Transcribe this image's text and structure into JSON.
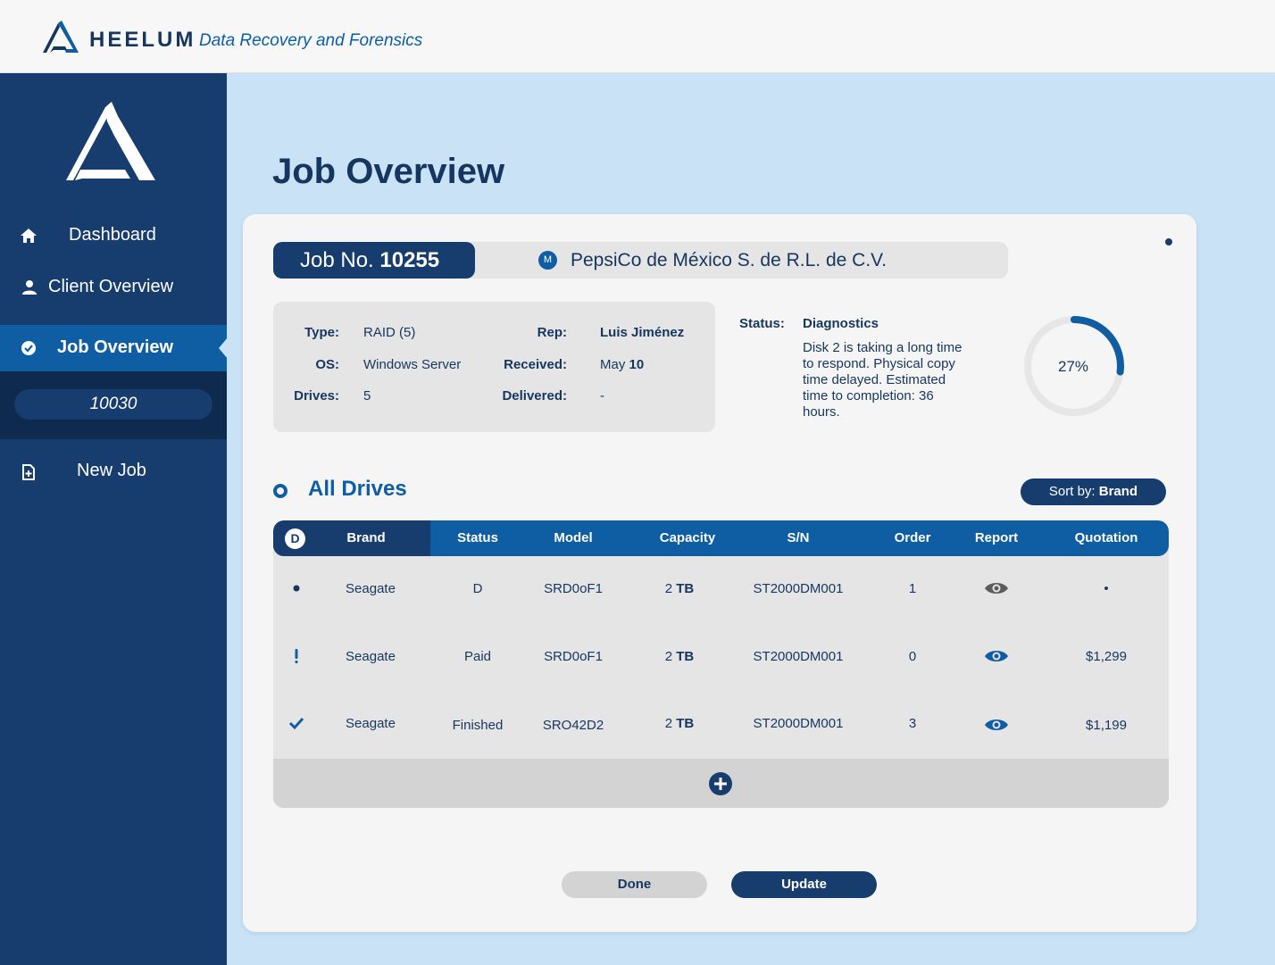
{
  "brand": {
    "name": "HEELUM",
    "tagline": "Data Recovery and Forensics"
  },
  "sidebar": {
    "items": [
      {
        "label": "Dashboard",
        "icon": "home-icon"
      },
      {
        "label": "Client Overview",
        "icon": "user-icon"
      },
      {
        "label": "Job Overview",
        "icon": "check-circle-icon",
        "active": true
      },
      {
        "label": "New Job",
        "icon": "file-add-icon"
      }
    ],
    "sub_item": "10030"
  },
  "page": {
    "title": "Job Overview"
  },
  "job": {
    "number_label": "Job No.",
    "number": "10255",
    "client_badge": "M",
    "client_name": "PepsiCo de México S. de R.L. de C.V."
  },
  "info": {
    "type_label": "Type:",
    "type": "RAID (5)",
    "os_label": "OS:",
    "os": "Windows Server",
    "drives_label": "Drives:",
    "drives": "5",
    "rep_label": "Rep:",
    "rep": "Luis Jiménez",
    "received_label": "Received:",
    "received_month": "May",
    "received_day": "10",
    "delivered_label": "Delivered:",
    "delivered": "-"
  },
  "status": {
    "label": "Status:",
    "title": "Diagnostics",
    "description": "Disk 2 is taking a long time to respond. Physical copy time delayed. Estimated time to completion: 36 hours.",
    "progress_text": "27%",
    "progress_value": 27
  },
  "drives": {
    "title": "All Drives",
    "sort_prefix": "Sort by:",
    "sort_value": "Brand",
    "header_badge": "D",
    "columns": [
      "Brand",
      "Status",
      "Model",
      "Capacity",
      "S/N",
      "Order",
      "Report",
      "Quotation"
    ],
    "rows": [
      {
        "flag": "dot",
        "brand": "Seagate",
        "status": "D",
        "model": "SRD0oF1",
        "capacity_num": "2",
        "capacity_unit": "TB",
        "sn": "ST2000DM001",
        "order": "1",
        "report": "eye-icon-grey",
        "quotation": "•"
      },
      {
        "flag": "exclamation",
        "brand": "Seagate",
        "status": "Paid",
        "model": "SRD0oF1",
        "capacity_num": "2",
        "capacity_unit": "TB",
        "sn": "ST2000DM001",
        "order": "0",
        "report": "eye-icon-blue",
        "quotation": "$1,299"
      },
      {
        "flag": "check",
        "brand": "Seagate",
        "status": "Finished",
        "model": "SRO42D2",
        "capacity_num": "2",
        "capacity_unit": "TB",
        "sn": "ST2000DM001",
        "order": "3",
        "report": "eye-icon-blue",
        "quotation": "$1,199"
      }
    ]
  },
  "actions": {
    "done": "Done",
    "update": "Update"
  },
  "colors": {
    "navy": "#173d6e",
    "blue": "#0f5da3",
    "background": "#c9e2f6",
    "card": "#f5f5f5"
  }
}
